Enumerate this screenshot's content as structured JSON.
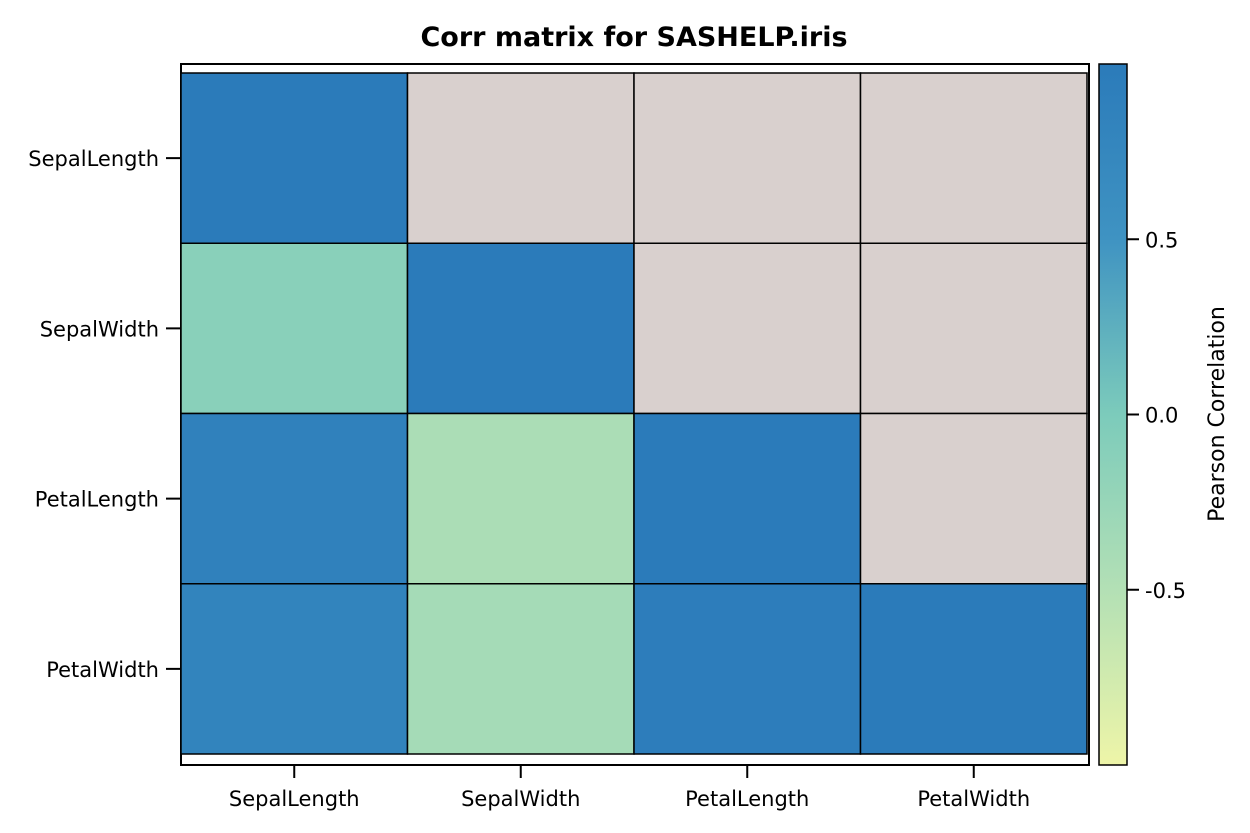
{
  "chart_data": {
    "type": "heatmap",
    "title": "Corr matrix for SASHELP.iris",
    "rows": [
      "SepalLength",
      "SepalWidth",
      "PetalLength",
      "PetalWidth"
    ],
    "columns": [
      "SepalLength",
      "SepalWidth",
      "PetalLength",
      "PetalWidth"
    ],
    "values": [
      [
        1.0,
        null,
        null,
        null
      ],
      [
        -0.12,
        1.0,
        null,
        null
      ],
      [
        0.87,
        -0.43,
        1.0,
        null
      ],
      [
        0.82,
        -0.37,
        0.96,
        1.0
      ]
    ],
    "missing_color": "#d9d0ce",
    "colorbar": {
      "label": "Pearson Correlation",
      "range": [
        -1,
        1
      ],
      "ticks": [
        0.5,
        0.0,
        -0.5
      ],
      "tick_labels": [
        "0.5",
        "0.0",
        "-0.5"
      ],
      "colors": [
        "#eef5a8",
        "#b3e0b5",
        "#7ccbbb",
        "#3f93c2",
        "#2b7bba"
      ]
    },
    "legend_position": "right",
    "grid": false
  }
}
